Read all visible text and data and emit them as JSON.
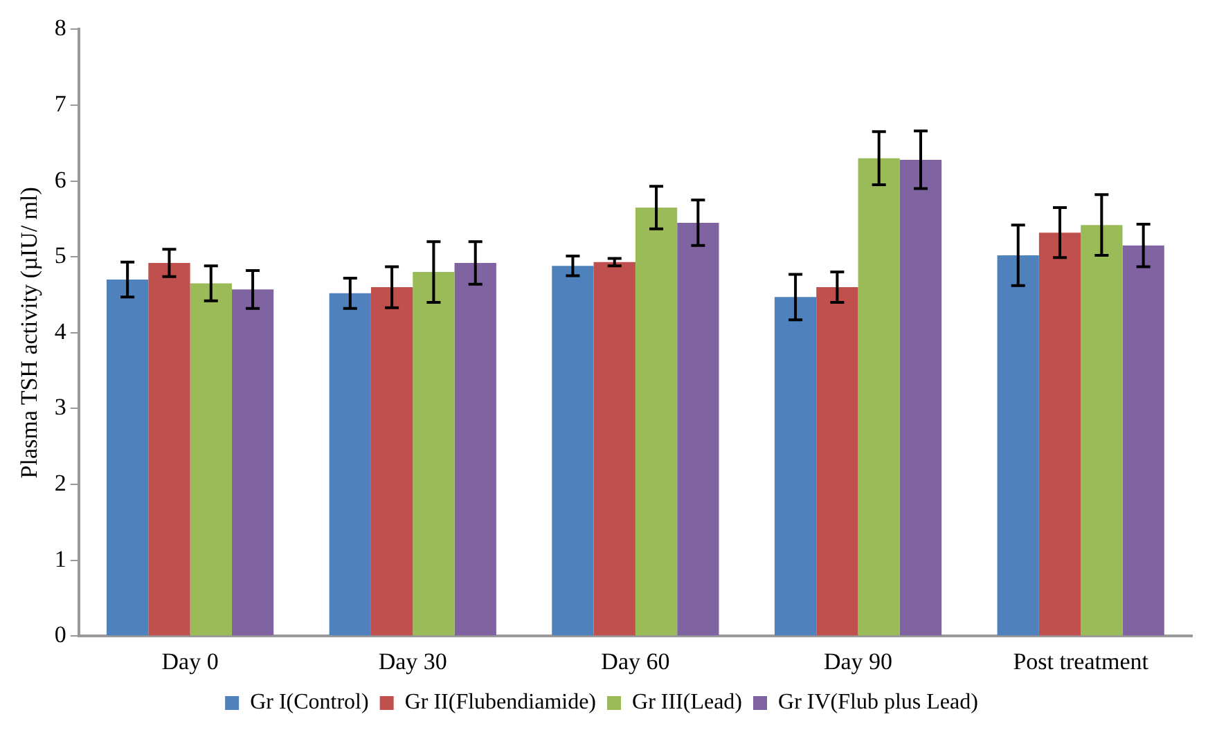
{
  "chart_data": {
    "type": "bar",
    "ylabel": "Plasma TSH activity (µIU/ ml)",
    "categories": [
      "Day 0",
      "Day 30",
      "Day 60",
      "Day 90",
      "Post treatment"
    ],
    "series": [
      {
        "name": "Gr I(Control)",
        "color": "#4f81bd",
        "values": [
          4.7,
          4.52,
          4.88,
          4.47,
          5.02
        ],
        "errors": [
          0.23,
          0.2,
          0.13,
          0.3,
          0.4
        ]
      },
      {
        "name": "Gr II(Flubendiamide)",
        "color": "#c0504d",
        "values": [
          4.92,
          4.6,
          4.93,
          4.6,
          5.32
        ],
        "errors": [
          0.18,
          0.27,
          0.05,
          0.2,
          0.33
        ]
      },
      {
        "name": "Gr III(Lead)",
        "color": "#9bbb59",
        "values": [
          4.65,
          4.8,
          5.65,
          6.3,
          5.42
        ],
        "errors": [
          0.23,
          0.4,
          0.28,
          0.35,
          0.4
        ]
      },
      {
        "name": "Gr IV(Flub plus Lead)",
        "color": "#8064a2",
        "values": [
          4.57,
          4.92,
          5.45,
          6.28,
          5.15
        ],
        "errors": [
          0.25,
          0.28,
          0.3,
          0.38,
          0.28
        ]
      }
    ],
    "ylim": [
      0,
      8
    ],
    "yticks": [
      0,
      1,
      2,
      3,
      4,
      5,
      6,
      7,
      8
    ],
    "grid": false,
    "legend": "bottom"
  }
}
